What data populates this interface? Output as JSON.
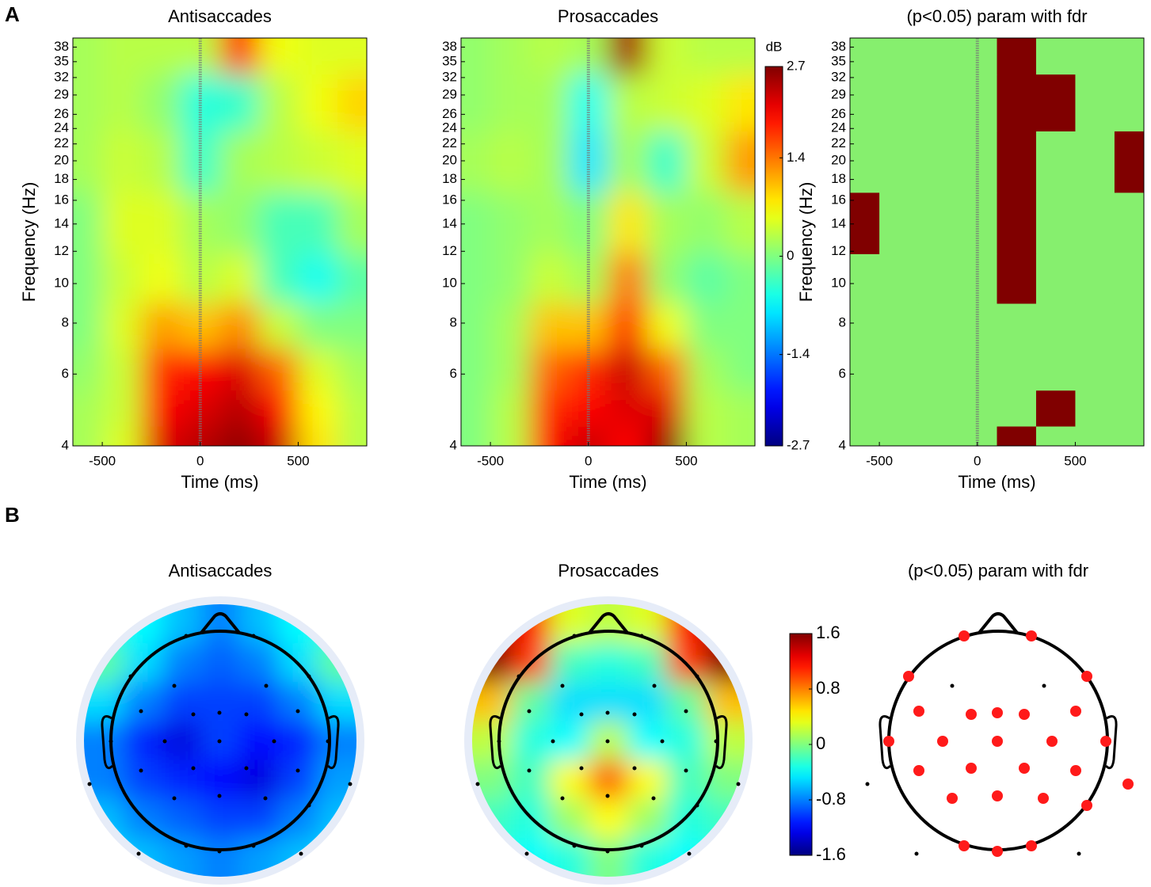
{
  "panel_labels": [
    "A",
    "B"
  ],
  "chart_data": [
    {
      "type": "heatmap",
      "title": "Antisaccades",
      "xlabel": "Time (ms)",
      "ylabel": "Frequency (Hz)",
      "x": [
        -600,
        -400,
        -200,
        0,
        200,
        400,
        600,
        800
      ],
      "y": [
        4,
        5,
        6,
        8,
        10,
        14,
        20,
        28,
        38
      ],
      "values": [
        [
          0.2,
          0.5,
          2.2,
          2.4,
          2.6,
          2.3,
          0.8,
          0.3
        ],
        [
          0.2,
          0.4,
          2.0,
          2.2,
          2.4,
          2.0,
          0.7,
          0.3
        ],
        [
          0.1,
          0.4,
          1.8,
          2.0,
          2.2,
          1.5,
          0.5,
          0.2
        ],
        [
          0,
          0.5,
          1.2,
          1.0,
          1.3,
          0.4,
          0,
          0
        ],
        [
          0,
          0.4,
          0.6,
          0.3,
          0.5,
          -0.3,
          -0.6,
          -0.2
        ],
        [
          0,
          0.5,
          0.5,
          0.2,
          0.1,
          -0.3,
          -0.3,
          0.2
        ],
        [
          0.2,
          0.4,
          0.3,
          -0.4,
          0.2,
          0.3,
          0.4,
          0.5
        ],
        [
          0.2,
          0.3,
          0.1,
          -0.5,
          -0.4,
          0.3,
          0.6,
          0.9
        ],
        [
          0.2,
          0.3,
          0.3,
          0.3,
          1.8,
          0.6,
          0.5,
          0.5
        ]
      ],
      "xlim": [
        -650,
        850
      ],
      "ylim": [
        4,
        40
      ],
      "yscale": "log",
      "xticks": [
        -500,
        0,
        500
      ],
      "yticks": [
        4,
        6,
        8,
        10,
        12,
        14,
        16,
        18,
        20,
        22,
        24,
        26,
        29,
        32,
        35,
        38
      ],
      "clim": [
        -2.7,
        2.7
      ],
      "colormap": "jet",
      "vline": 0
    },
    {
      "type": "heatmap",
      "title": "Prosaccades",
      "xlabel": "Time (ms)",
      "x": [
        -600,
        -400,
        -200,
        0,
        200,
        400,
        600,
        800
      ],
      "y": [
        4,
        5,
        6,
        8,
        10,
        14,
        20,
        28,
        38
      ],
      "values": [
        [
          0,
          0.3,
          2.0,
          2.3,
          2.0,
          2.6,
          0.3,
          0.2
        ],
        [
          0,
          0.3,
          1.8,
          2.0,
          2.2,
          2.2,
          0.3,
          0.2
        ],
        [
          0,
          0.2,
          1.5,
          1.8,
          2.3,
          1.5,
          0.2,
          0
        ],
        [
          0,
          0.2,
          1.0,
          1.0,
          1.8,
          0.6,
          0,
          0
        ],
        [
          0,
          0.1,
          0.4,
          0.2,
          1.4,
          0.1,
          -0.2,
          0
        ],
        [
          0,
          0.1,
          0.2,
          0,
          0.8,
          0.2,
          0.1,
          0.3
        ],
        [
          0.2,
          0.3,
          0.2,
          -0.8,
          0.2,
          -0.4,
          0.4,
          1.2
        ],
        [
          0.1,
          0.2,
          0.2,
          -0.6,
          0.3,
          0.4,
          0.5,
          0.8
        ],
        [
          0.1,
          0.2,
          0.3,
          0.2,
          2.5,
          0.4,
          0.3,
          0.3
        ]
      ],
      "xlim": [
        -650,
        850
      ],
      "ylim": [
        4,
        40
      ],
      "yscale": "log",
      "xticks": [
        -500,
        0,
        500
      ],
      "yticks": [
        4,
        6,
        8,
        10,
        12,
        14,
        16,
        18,
        20,
        22,
        24,
        26,
        29,
        32,
        35,
        38
      ],
      "clim": [
        -2.7,
        2.7
      ],
      "colormap": "jet",
      "vline": 0,
      "colorbar": {
        "label": "dB",
        "ticks": [
          2.7,
          1.4,
          0,
          -1.4,
          -2.7
        ]
      }
    },
    {
      "type": "mask",
      "title": "(p<0.05) param with fdr",
      "xlabel": "Time (ms)",
      "ylabel": "Frequency (Hz)",
      "x": [
        -600,
        -400,
        -200,
        0,
        200,
        400,
        600,
        800
      ],
      "y": [
        4,
        5,
        6,
        8,
        10,
        14,
        20,
        28,
        38
      ],
      "values": [
        [
          0,
          0,
          0,
          0,
          1,
          0,
          0,
          0
        ],
        [
          0,
          0,
          0,
          0,
          0,
          1,
          0,
          0
        ],
        [
          0,
          0,
          0,
          0,
          0,
          0,
          0,
          0
        ],
        [
          0,
          0,
          0,
          0,
          0,
          0,
          0,
          0
        ],
        [
          0,
          0,
          0,
          0,
          1,
          0,
          0,
          0
        ],
        [
          1,
          0,
          0,
          0,
          1,
          0,
          0,
          0
        ],
        [
          0,
          0,
          0,
          0,
          1,
          0,
          0,
          1
        ],
        [
          0,
          0,
          0,
          0,
          1,
          1,
          0,
          0
        ],
        [
          0,
          0,
          0,
          0,
          1,
          0,
          0,
          0
        ]
      ],
      "colors": [
        "#86ef6e",
        "#800000"
      ],
      "xlim": [
        -650,
        850
      ],
      "ylim": [
        4,
        40
      ],
      "yscale": "log",
      "xticks": [
        -500,
        0,
        500
      ],
      "yticks": [
        4,
        6,
        8,
        10,
        12,
        14,
        16,
        18,
        20,
        22,
        24,
        26,
        29,
        32,
        35,
        38
      ],
      "vline": 0
    },
    {
      "type": "topoplot",
      "title": "Antisaccades",
      "values": [
        [
          -0.3,
          -0.4,
          -0.6,
          -0.8,
          -0.6,
          -0.4,
          -0.3
        ],
        [
          -0.1,
          -0.5,
          -0.8,
          -0.9,
          -0.8,
          -0.5,
          -0.1
        ],
        [
          -0.5,
          -0.8,
          -1.0,
          -1.0,
          -1.0,
          -0.8,
          -0.5
        ],
        [
          -0.8,
          -1.1,
          -1.3,
          -1.0,
          -1.2,
          -1.1,
          -0.8
        ],
        [
          -0.8,
          -1.0,
          -1.1,
          -1.2,
          -1.3,
          -1.0,
          -0.7
        ],
        [
          -0.6,
          -0.8,
          -0.9,
          -1.0,
          -1.0,
          -0.8,
          -0.6
        ],
        [
          -0.5,
          -0.6,
          -0.7,
          -0.8,
          -0.7,
          -0.6,
          -0.5
        ]
      ],
      "clim": [
        -1.6,
        1.6
      ],
      "colormap": "jet"
    },
    {
      "type": "topoplot",
      "title": "Prosaccades",
      "values": [
        [
          1.6,
          1.2,
          0.3,
          0.2,
          0.3,
          1.2,
          1.6
        ],
        [
          1.6,
          1.0,
          -0.2,
          -0.3,
          -0.2,
          1.0,
          1.6
        ],
        [
          0.6,
          -0.1,
          -0.5,
          -0.5,
          -0.5,
          -0.1,
          0.6
        ],
        [
          0.2,
          -0.3,
          -0.4,
          0.2,
          -0.4,
          -0.3,
          0.2
        ],
        [
          0.0,
          -0.2,
          0.4,
          0.9,
          0.4,
          -0.2,
          0.0
        ],
        [
          -0.2,
          -0.3,
          0.1,
          0.4,
          0.1,
          -0.3,
          -0.2
        ],
        [
          -0.3,
          -0.4,
          -0.3,
          0.0,
          -0.3,
          -0.4,
          -0.3
        ]
      ],
      "clim": [
        -1.6,
        1.6
      ],
      "colormap": "jet",
      "colorbar": {
        "ticks": [
          1.6,
          0.8,
          0,
          -0.8,
          -1.6
        ]
      }
    },
    {
      "type": "electrodes",
      "title": "(p<0.05) param with fdr",
      "color": "#ff1a1a",
      "significant": [
        1,
        1,
        1,
        1,
        1,
        1,
        1,
        1,
        1,
        1,
        1,
        1,
        1,
        1,
        1,
        1,
        1,
        1,
        1,
        1,
        1,
        1,
        1,
        1,
        1,
        1,
        0,
        0,
        0,
        0,
        0
      ]
    }
  ]
}
